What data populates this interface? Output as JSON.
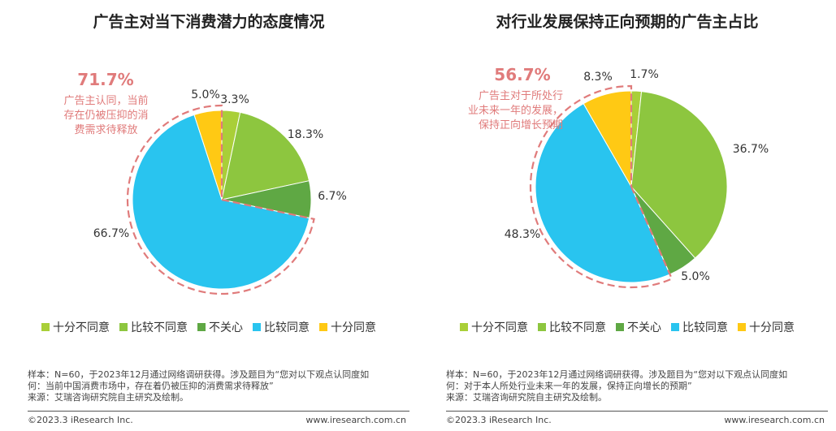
{
  "colors": {
    "十分不同意": "#a9cf38",
    "比较不同意": "#8dc63f",
    "不关心": "#5fa844",
    "比较同意": "#29c4ef",
    "十分同意": "#ffc914",
    "callout": "#e07b7b"
  },
  "legend": [
    "十分不同意",
    "比较不同意",
    "不关心",
    "比较同意",
    "十分同意"
  ],
  "left": {
    "title": "广告主对当下消费潜力的态度情况",
    "callout_value": "71.7%",
    "callout_lines": [
      "广告主认同，当前",
      "存在仍被压抑的消",
      "费需求待释放"
    ],
    "notes": [
      "样本：N=60，于2023年12月通过网络调研获得。涉及题目为“您对以下观点认同度如",
      "何：当前中国消费市场中，存在着仍被压抑的消费需求待释放”",
      "来源：艾瑞咨询研究院自主研究及绘制。"
    ],
    "footer_left": "©2023.3 iResearch Inc.",
    "footer_right": "www.iresearch.com.cn"
  },
  "right": {
    "title": "对行业发展保持正向预期的广告主占比",
    "callout_value": "56.7%",
    "callout_lines": [
      "广告主对于所处行",
      "业未来一年的发展，",
      "保持正向增长预期"
    ],
    "notes": [
      "样本：N=60，于2023年12月通过网络调研获得。涉及题目为“您对以下观点认同度如",
      "何：对于本人所处行业未来一年的发展，保持正向增长的预期”",
      "来源：艾瑞咨询研究院自主研究及绘制。"
    ],
    "footer_left": "©2023.3 iResearch Inc.",
    "footer_right": "www.iresearch.com.cn"
  },
  "chart_data": [
    {
      "type": "pie",
      "title": "广告主对当下消费潜力的态度情况",
      "categories": [
        "十分不同意",
        "比较不同意",
        "不关心",
        "比较同意",
        "十分同意"
      ],
      "values": [
        3.3,
        18.3,
        6.7,
        66.7,
        5.0
      ],
      "labels": [
        "3.3%",
        "18.3%",
        "6.7%",
        "66.7%",
        "5.0%"
      ],
      "highlight": {
        "categories": [
          "比较同意",
          "十分同意"
        ],
        "total": "71.7%"
      },
      "legend": "bottom"
    },
    {
      "type": "pie",
      "title": "对行业发展保持正向预期的广告主占比",
      "categories": [
        "十分不同意",
        "比较不同意",
        "不关心",
        "比较同意",
        "十分同意"
      ],
      "values": [
        1.7,
        36.7,
        5.0,
        48.3,
        8.3
      ],
      "labels": [
        "1.7%",
        "36.7%",
        "5.0%",
        "48.3%",
        "8.3%"
      ],
      "highlight": {
        "categories": [
          "比较同意",
          "十分同意"
        ],
        "total": "56.7%"
      },
      "legend": "bottom"
    }
  ]
}
